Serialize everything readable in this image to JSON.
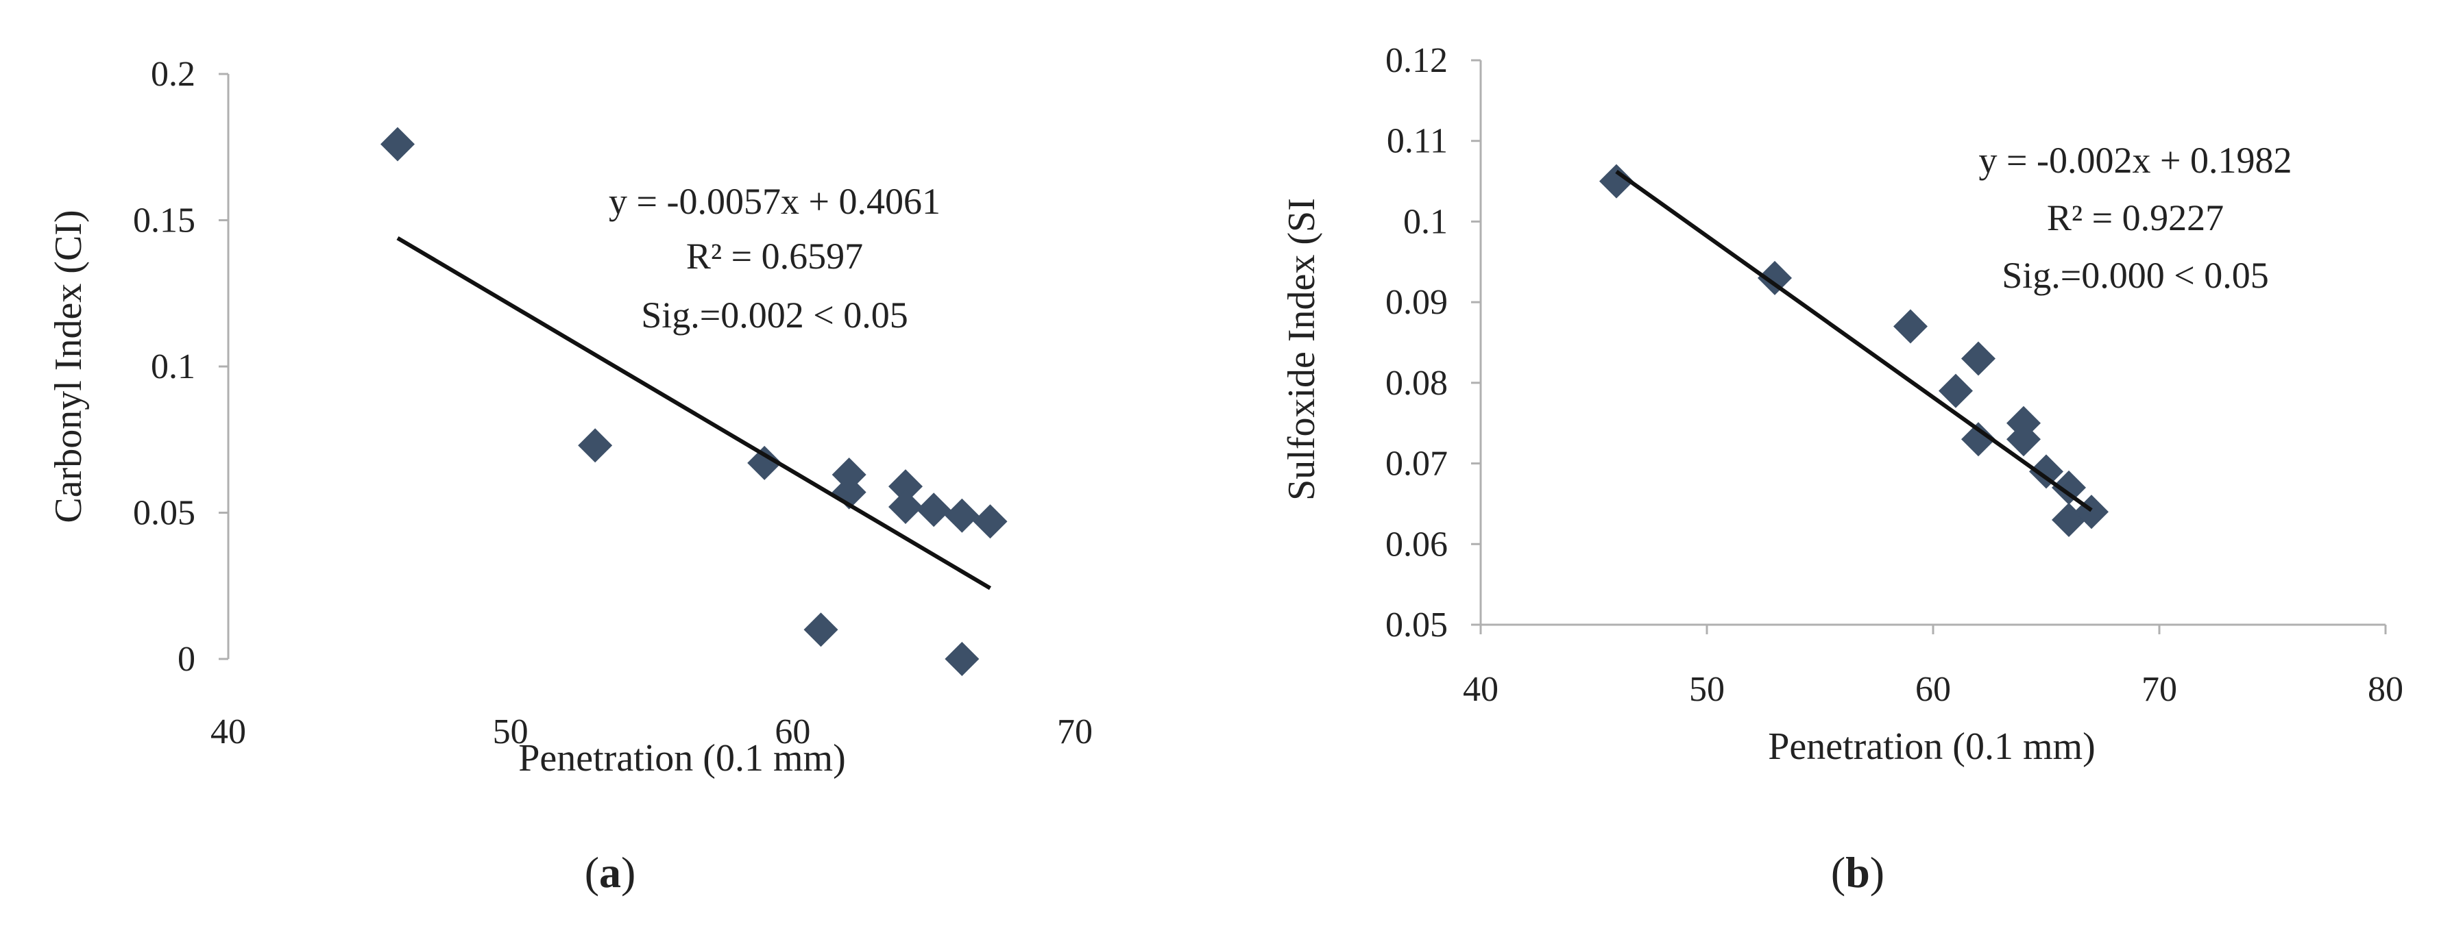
{
  "chart_data": [
    {
      "type": "scatter",
      "panel_label": "a",
      "xlabel": "Penetration (0.1 mm)",
      "ylabel": "Carbonyl Index (CI)",
      "xlim": [
        40,
        70
      ],
      "ylim": [
        0,
        0.2
      ],
      "x_ticks": [
        "40",
        "50",
        "60",
        "70"
      ],
      "y_ticks": [
        "0",
        "0.05",
        "0.1",
        "0.15",
        "0.2"
      ],
      "marker_color": "#3d5068",
      "points": [
        {
          "x": 46,
          "y": 0.176
        },
        {
          "x": 53,
          "y": 0.073
        },
        {
          "x": 59,
          "y": 0.067
        },
        {
          "x": 61,
          "y": 0.01
        },
        {
          "x": 62,
          "y": 0.063
        },
        {
          "x": 62,
          "y": 0.057
        },
        {
          "x": 64,
          "y": 0.059
        },
        {
          "x": 64,
          "y": 0.052
        },
        {
          "x": 65,
          "y": 0.051
        },
        {
          "x": 66,
          "y": 0.049
        },
        {
          "x": 66,
          "y": 0.0
        },
        {
          "x": 67,
          "y": 0.047
        }
      ],
      "trendline": {
        "slope": -0.0057,
        "intercept": 0.4061,
        "x_range": [
          46,
          67
        ]
      },
      "annotations": [
        "y = -0.0057x + 0.4061",
        "R² = 0.6597",
        "Sig.=0.002 < 0.05"
      ]
    },
    {
      "type": "scatter",
      "panel_label": "b",
      "xlabel": "Penetration (0.1 mm)",
      "ylabel": "Sulfoxide Index (SI",
      "xlim": [
        40,
        80
      ],
      "ylim": [
        0.05,
        0.12
      ],
      "x_ticks": [
        "40",
        "50",
        "60",
        "70",
        "80"
      ],
      "y_ticks": [
        "0.05",
        "0.06",
        "0.07",
        "0.08",
        "0.09",
        "0.1",
        "0.11",
        "0.12"
      ],
      "marker_color": "#3d5068",
      "points": [
        {
          "x": 46,
          "y": 0.105
        },
        {
          "x": 53,
          "y": 0.093
        },
        {
          "x": 59,
          "y": 0.087
        },
        {
          "x": 61,
          "y": 0.079
        },
        {
          "x": 62,
          "y": 0.083
        },
        {
          "x": 62,
          "y": 0.073
        },
        {
          "x": 64,
          "y": 0.075
        },
        {
          "x": 64,
          "y": 0.073
        },
        {
          "x": 65,
          "y": 0.069
        },
        {
          "x": 66,
          "y": 0.067
        },
        {
          "x": 66,
          "y": 0.063
        },
        {
          "x": 67,
          "y": 0.064
        }
      ],
      "trendline": {
        "slope": -0.002,
        "intercept": 0.1982,
        "x_range": [
          46,
          67
        ]
      },
      "annotations": [
        "y = -0.002x + 0.1982",
        "R² = 0.9227",
        "Sig.=0.000 < 0.05"
      ]
    }
  ]
}
